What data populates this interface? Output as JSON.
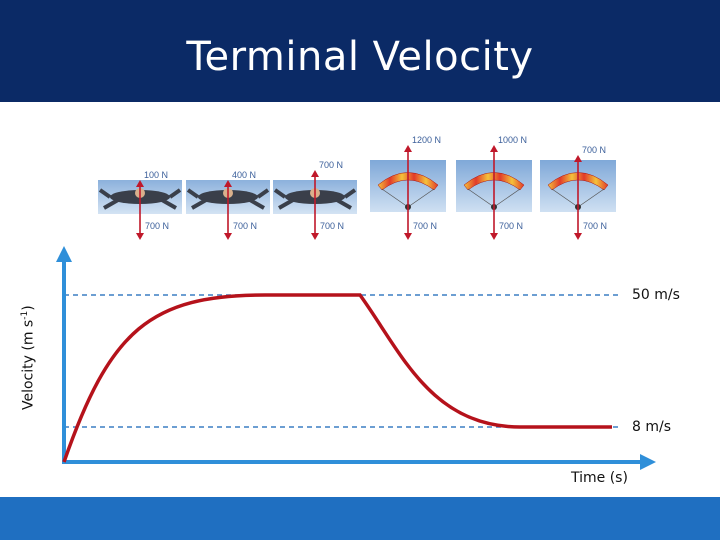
{
  "slide": {
    "title": "Terminal Velocity"
  },
  "axes": {
    "y_label_prefix": "Velocity (m s",
    "y_label_exp": "-1",
    "y_label_suffix": ")",
    "x_label": "Time (s)"
  },
  "levels": {
    "high": "50 m/s",
    "low": "8 m/s"
  },
  "frames": [
    {
      "kind": "skydiver",
      "up_force": "100 N",
      "down_force": "700 N"
    },
    {
      "kind": "skydiver",
      "up_force": "400 N",
      "down_force": "700 N"
    },
    {
      "kind": "skydiver",
      "up_force": "700 N",
      "down_force": "700 N"
    },
    {
      "kind": "parachute",
      "up_force": "1200 N",
      "down_force": "700 N"
    },
    {
      "kind": "parachute",
      "up_force": "1000 N",
      "down_force": "700 N"
    },
    {
      "kind": "parachute",
      "up_force": "700 N",
      "down_force": "700 N"
    }
  ],
  "colors": {
    "header": "#0b2a66",
    "footer": "#1f6fc1",
    "curve": "#b5121b",
    "axis": "#2f8fd9",
    "dashed": "#3b7fc4",
    "force_arrow": "#c0182a"
  }
}
